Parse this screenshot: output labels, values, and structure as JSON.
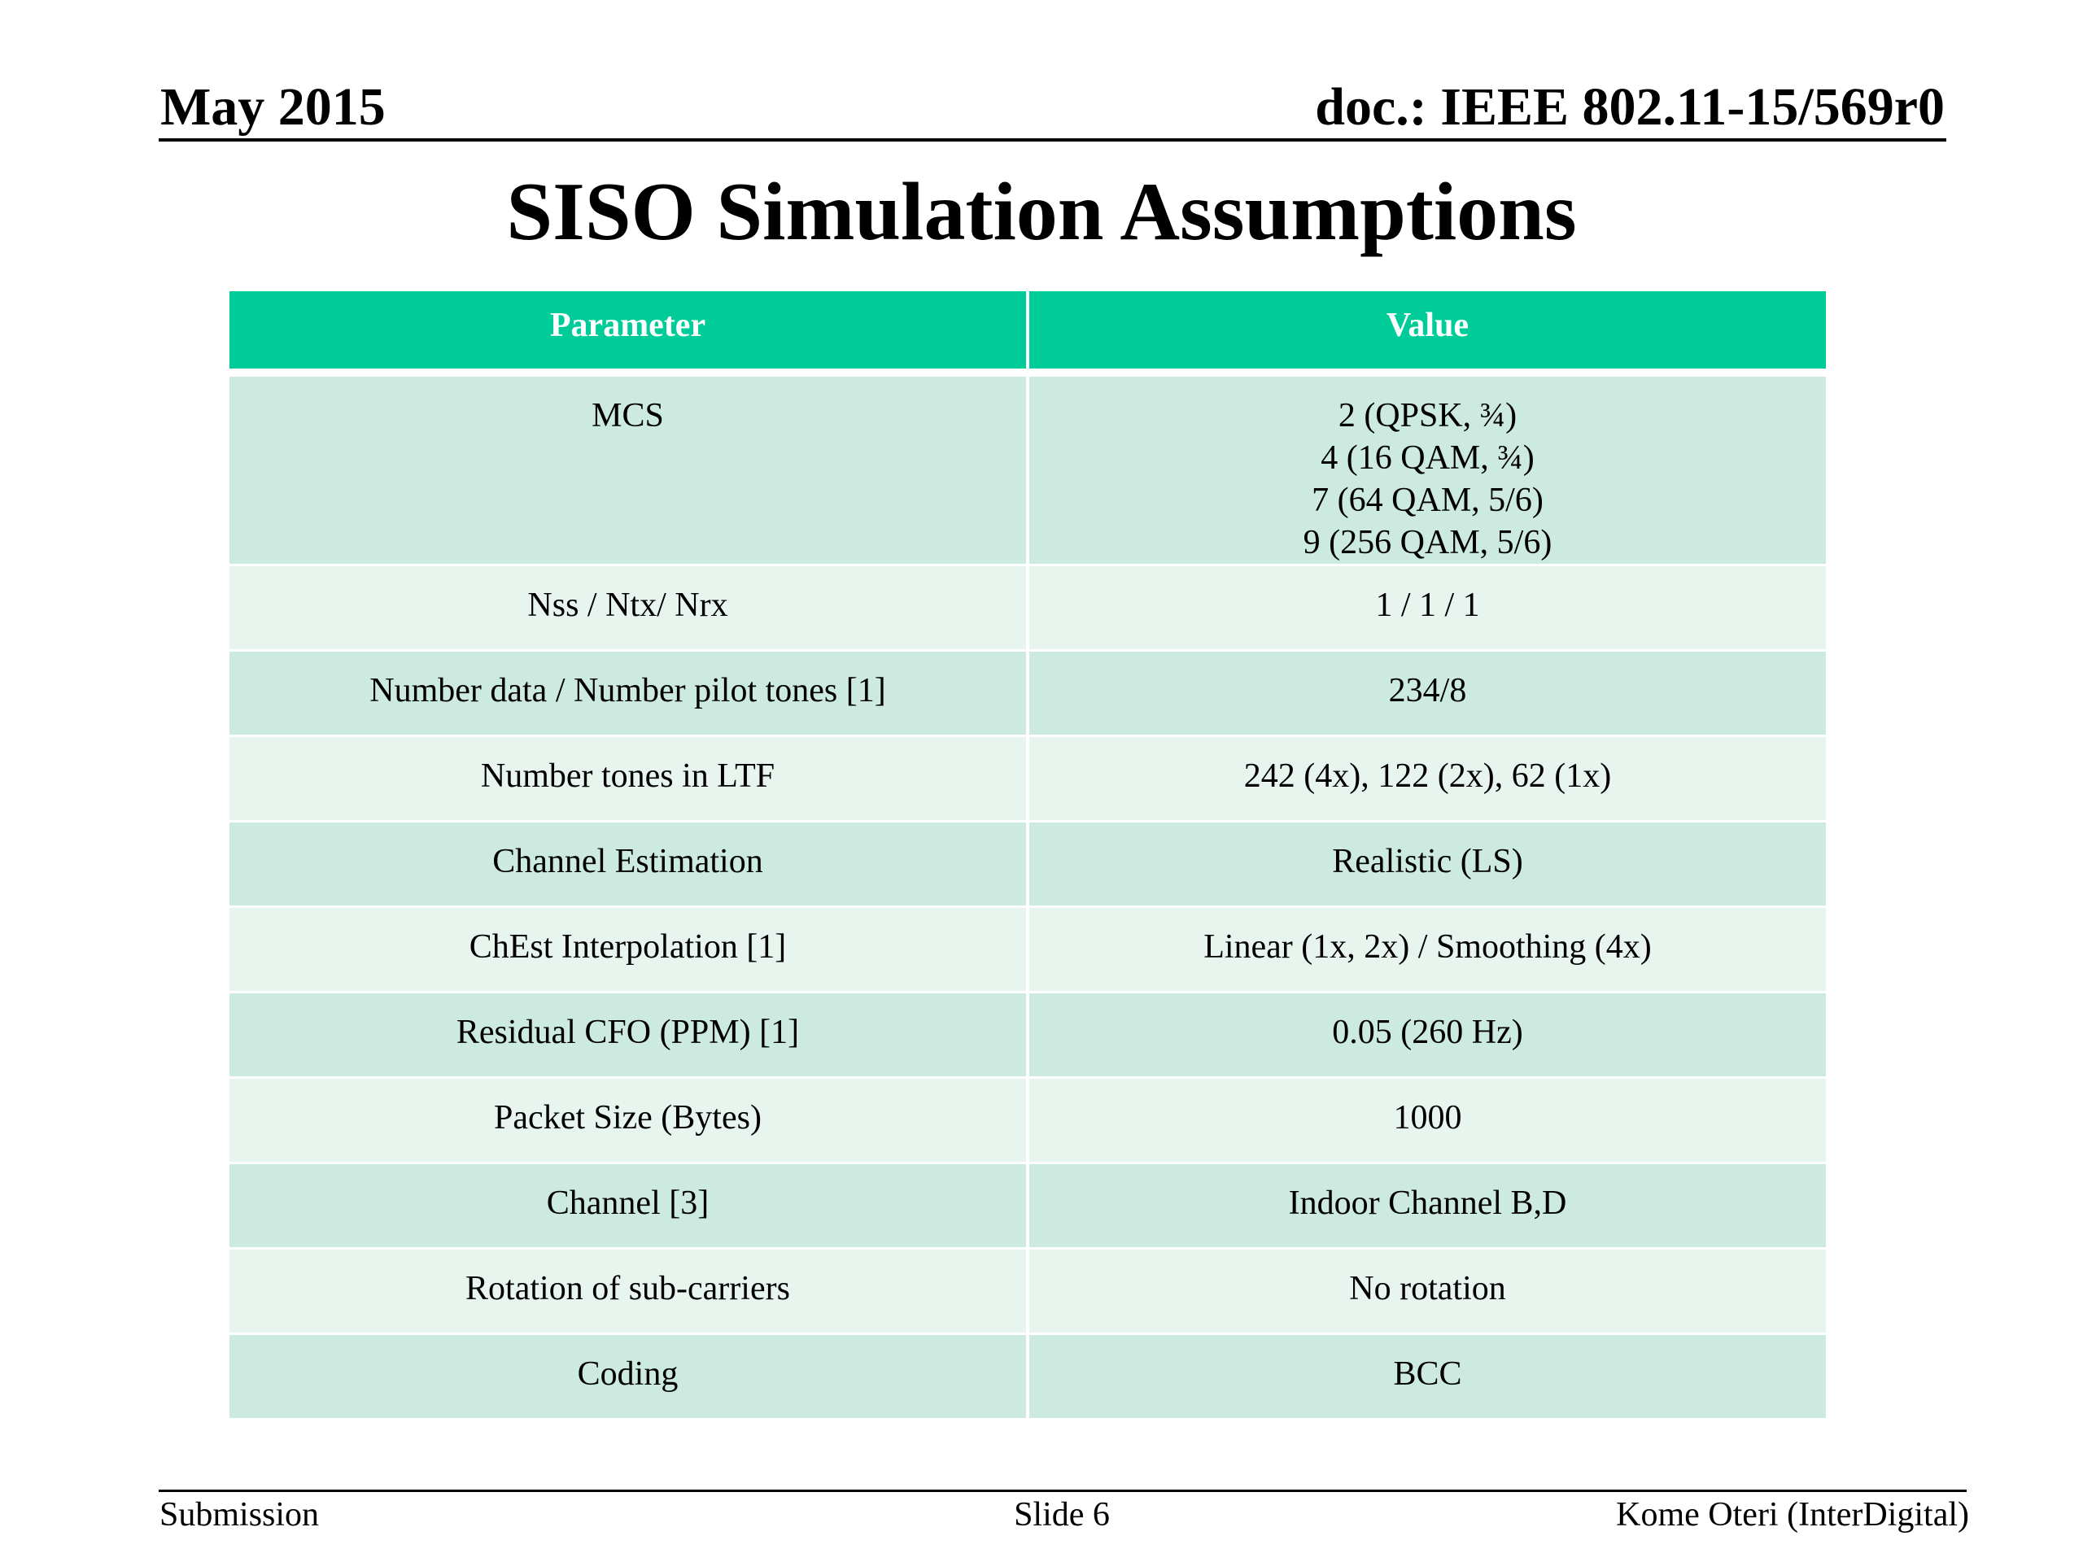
{
  "header": {
    "date": "May 2015",
    "doc_id": "doc.: IEEE 802.11-15/569r0"
  },
  "title": "SISO Simulation Assumptions",
  "table": {
    "headers": [
      "Parameter",
      "Value"
    ],
    "rows": [
      {
        "parameter": "MCS",
        "value": [
          "2 (QPSK, ¾)",
          "4 (16 QAM, ¾)",
          "7 (64 QAM, 5/6)",
          "9 (256 QAM, 5/6)"
        ]
      },
      {
        "parameter": "Nss / Ntx/ Nrx",
        "value": [
          "1 / 1 / 1"
        ]
      },
      {
        "parameter": "Number data / Number pilot tones [1]",
        "value": [
          "234/8"
        ]
      },
      {
        "parameter": "Number tones in LTF",
        "value": [
          "242 (4x), 122 (2x), 62 (1x)"
        ]
      },
      {
        "parameter": "Channel Estimation",
        "value": [
          "Realistic (LS)"
        ]
      },
      {
        "parameter": "ChEst Interpolation [1]",
        "value": [
          "Linear (1x, 2x) / Smoothing (4x)"
        ]
      },
      {
        "parameter": "Residual CFO (PPM) [1]",
        "value": [
          "0.05 (260 Hz)"
        ]
      },
      {
        "parameter": "Packet Size (Bytes)",
        "value": [
          "1000"
        ]
      },
      {
        "parameter": "Channel [3]",
        "value": [
          "Indoor Channel B,D"
        ]
      },
      {
        "parameter": "Rotation of sub-carriers",
        "value": [
          "No rotation"
        ]
      },
      {
        "parameter": "Coding",
        "value": [
          "BCC"
        ]
      }
    ]
  },
  "footer": {
    "left": "Submission",
    "center": "Slide 6",
    "right": "Kome Oteri (InterDigital)"
  },
  "colors": {
    "header_fill": "#00cc99",
    "row_dark": "#cceadf",
    "row_light": "#e8f5ef"
  }
}
